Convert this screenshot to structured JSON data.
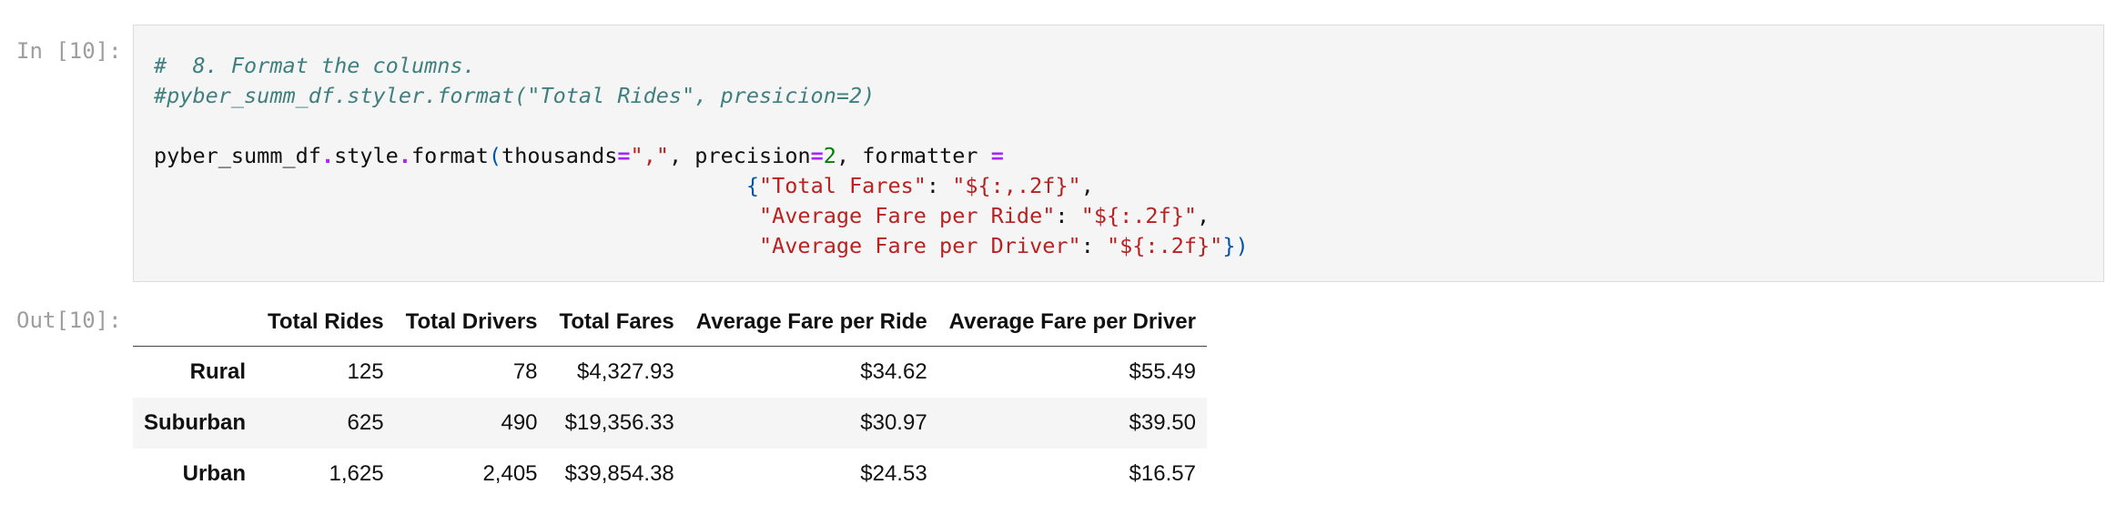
{
  "input_cell": {
    "prompt": "In [10]:",
    "code": {
      "comment1": "#  8. Format the columns.",
      "comment2": "#pyber_summ_df.styler.format(\"Total Rides\", presicion=2)",
      "line4": {
        "obj": "pyber_summ_df",
        "dot1": ".",
        "attr": "style",
        "dot2": ".",
        "method": "format",
        "open_paren": "(",
        "kw1": "thousands",
        "eq1": "=",
        "str1": "\",\"",
        "sep1": ", ",
        "kw2": "precision",
        "eq2": "=",
        "num1": "2",
        "sep2": ", ",
        "kw3": "formatter ",
        "eq3": "="
      },
      "line5": {
        "indent": "                                              ",
        "open_brace": "{",
        "key": "\"Total Fares\"",
        "colon": ": ",
        "val": "\"${:,.2f}\"",
        "comma": ","
      },
      "line6": {
        "indent": "                                               ",
        "key": "\"Average Fare per Ride\"",
        "colon": ": ",
        "val": "\"${:.2f}\"",
        "comma": ","
      },
      "line7": {
        "indent": "                                               ",
        "key": "\"Average Fare per Driver\"",
        "colon": ": ",
        "val": "\"${:.2f}\"",
        "close": "})"
      }
    }
  },
  "output_cell": {
    "prompt": "Out[10]:",
    "table": {
      "columns": [
        "Total Rides",
        "Total Drivers",
        "Total Fares",
        "Average Fare per Ride",
        "Average Fare per Driver"
      ],
      "rows": [
        {
          "index": "Rural",
          "values": [
            "125",
            "78",
            "$4,327.93",
            "$34.62",
            "$55.49"
          ]
        },
        {
          "index": "Suburban",
          "values": [
            "625",
            "490",
            "$19,356.33",
            "$30.97",
            "$39.50"
          ]
        },
        {
          "index": "Urban",
          "values": [
            "1,625",
            "2,405",
            "$39,854.38",
            "$24.53",
            "$16.57"
          ]
        }
      ]
    }
  }
}
